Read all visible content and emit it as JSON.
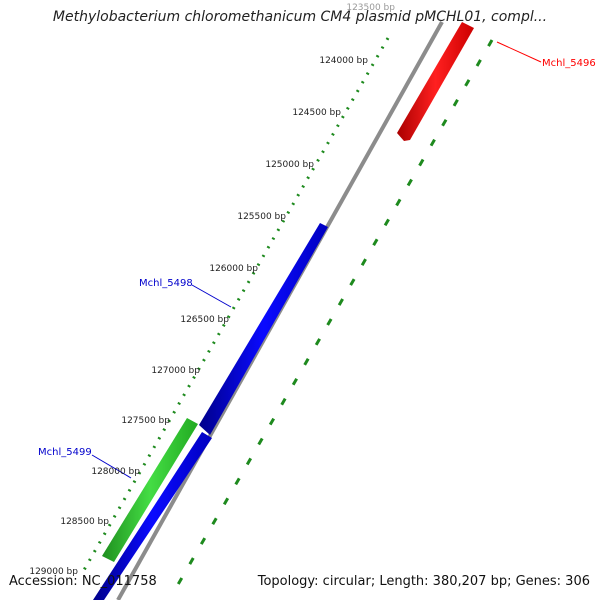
{
  "title": "Methylobacterium chloromethanicum CM4 plasmid pMCHL01, compl...",
  "footer": {
    "accession": "Accession: NC_011758",
    "summary": "Topology: circular; Length: 380,207 bp; Genes: 306"
  },
  "colors": {
    "background": "#ffffff",
    "backbone": "#8c8c8c",
    "tick_green": "#1e8a1e",
    "forward_gene": "#ff0000",
    "reverse_gene": "#0000ff",
    "highlight_gene": "#33cc33",
    "label_red": "#ff0000",
    "label_blue": "#0000cc"
  },
  "ruler": [
    {
      "label": "123500 bp"
    },
    {
      "label": "124000 bp"
    },
    {
      "label": "124500 bp"
    },
    {
      "label": "125000 bp"
    },
    {
      "label": "125500 bp"
    },
    {
      "label": "126000 bp"
    },
    {
      "label": "126500 bp"
    },
    {
      "label": "127000 bp"
    },
    {
      "label": "127500 bp"
    },
    {
      "label": "128000 bp"
    },
    {
      "label": "128500 bp"
    },
    {
      "label": "129000 bp"
    }
  ],
  "gene_labels": [
    {
      "name": "Mchl_5496",
      "color": "#ff0000"
    },
    {
      "name": "Mchl_5498",
      "color": "#0000cc"
    },
    {
      "name": "Mchl_5499",
      "color": "#0000cc"
    }
  ]
}
